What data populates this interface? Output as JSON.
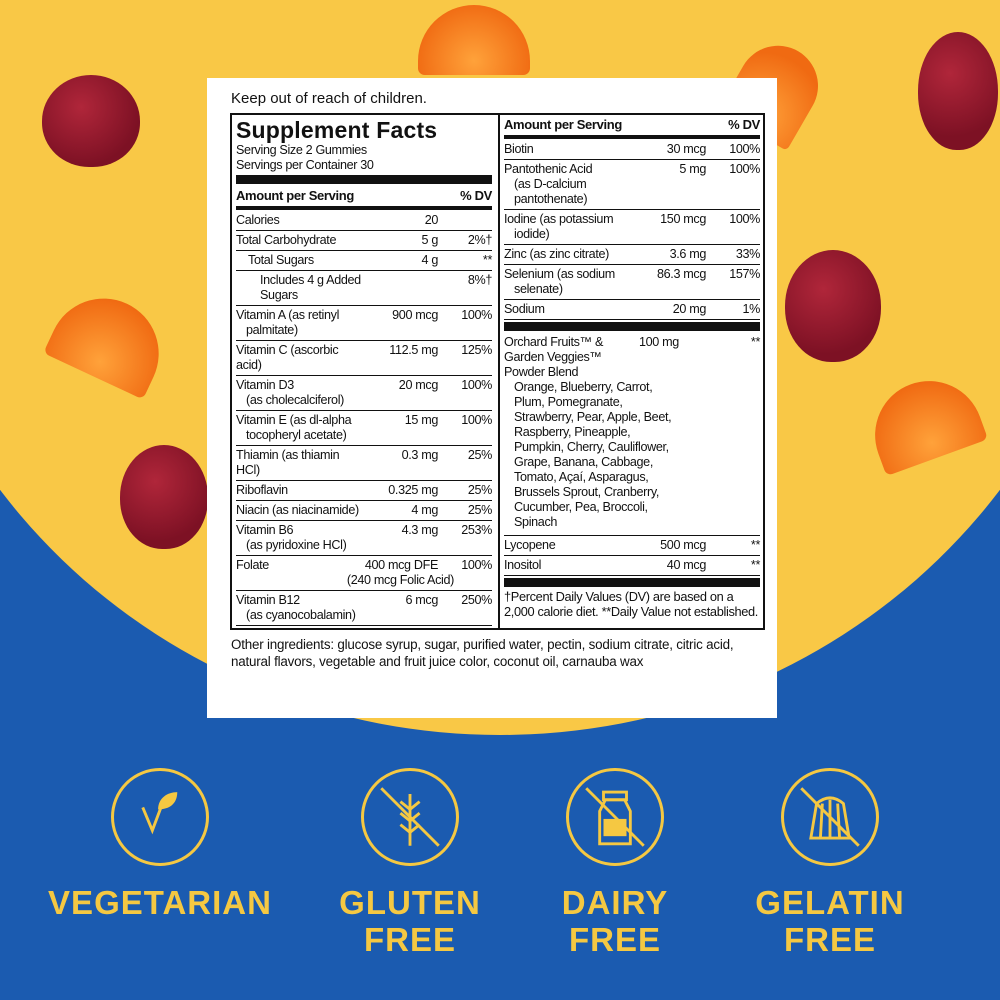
{
  "warning": "Keep out of reach of children.",
  "title": "Supplement Facts",
  "serving_size": "Serving Size 2 Gummies",
  "servings_per_container": "Servings per Container 30",
  "header": {
    "amount": "Amount per Serving",
    "dv": "% DV"
  },
  "left_rows": [
    {
      "name": "Calories",
      "amount": "20",
      "dv": ""
    },
    {
      "name": "Total Carbohydrate",
      "amount": "5 g",
      "dv": "2%†"
    },
    {
      "name": "Total Sugars",
      "amount": "4 g",
      "dv": "**",
      "indent": 1
    },
    {
      "name": "Includes 4 g Added Sugars",
      "amount": "",
      "dv": "8%†",
      "indent": 2
    },
    {
      "name": "Vitamin A (as retinyl",
      "sub": "palmitate)",
      "amount": "900 mcg",
      "dv": "100%"
    },
    {
      "name": "Vitamin C (ascorbic acid)",
      "amount": "112.5 mg",
      "dv": "125%"
    },
    {
      "name": "Vitamin D3",
      "sub": "(as cholecalciferol)",
      "amount": "20 mcg",
      "dv": "100%"
    },
    {
      "name": "Vitamin E (as dl-alpha",
      "sub": "tocopheryl acetate)",
      "amount": "15 mg",
      "dv": "100%"
    },
    {
      "name": "Thiamin (as thiamin HCl)",
      "amount": "0.3 mg",
      "dv": "25%"
    },
    {
      "name": "Riboflavin",
      "amount": "0.325 mg",
      "dv": "25%"
    },
    {
      "name": "Niacin (as niacinamide)",
      "amount": "4 mg",
      "dv": "25%"
    },
    {
      "name": "Vitamin B6",
      "sub": "(as pyridoxine HCl)",
      "amount": "4.3 mg",
      "dv": "253%"
    },
    {
      "name": "Folate",
      "amount": "400 mcg DFE",
      "dv": "100%",
      "note": "(240 mcg Folic Acid)"
    },
    {
      "name": "Vitamin B12",
      "sub": "(as cyanocobalamin)",
      "amount": "6 mcg",
      "dv": "250%"
    }
  ],
  "right_rows": [
    {
      "name": "Biotin",
      "amount": "30 mcg",
      "dv": "100%"
    },
    {
      "name": "Pantothenic Acid",
      "sub": "(as D-calcium pantothenate)",
      "amount": "5 mg",
      "dv": "100%"
    },
    {
      "name": "Iodine (as potassium",
      "sub": "iodide)",
      "amount": "150 mcg",
      "dv": "100%"
    },
    {
      "name": "Zinc (as zinc citrate)",
      "amount": "3.6 mg",
      "dv": "33%"
    },
    {
      "name": "Selenium (as sodium",
      "sub": "selenate)",
      "amount": "86.3 mcg",
      "dv": "157%"
    },
    {
      "name": "Sodium",
      "amount": "20 mg",
      "dv": "1%"
    }
  ],
  "blend": {
    "name": "Orchard Fruits™ & Garden Veggies™ Powder Blend",
    "amount": "100 mg",
    "dv": "**",
    "ingredients": "Orange, Blueberry, Carrot, Plum, Pomegranate, Strawberry, Pear, Apple, Beet, Raspberry, Pineapple, Pumpkin, Cherry, Cauliflower, Grape, Banana, Cabbage, Tomato, Açaí, Asparagus, Brussels Sprout, Cranberry, Cucumber, Pea, Broccoli, Spinach"
  },
  "right_rows2": [
    {
      "name": "Lycopene",
      "amount": "500 mcg",
      "dv": "**"
    },
    {
      "name": "Inositol",
      "amount": "40 mcg",
      "dv": "**"
    }
  ],
  "footnote": "†Percent Daily Values (DV) are based on a 2,000 calorie diet. **Daily Value not established.",
  "other_ingredients": "Other ingredients: glucose syrup, sugar, purified water, pectin, sodium citrate, citric acid, natural flavors, vegetable and fruit juice color, coconut oil, carnauba wax",
  "badges": [
    {
      "label": "VEGETARIAN",
      "icon": "leaf-icon"
    },
    {
      "label": "GLUTEN FREE",
      "icon": "no-wheat-icon"
    },
    {
      "label": "DAIRY FREE",
      "icon": "no-milk-bottle-icon"
    },
    {
      "label": "GELATIN FREE",
      "icon": "no-gelatin-icon"
    }
  ],
  "colors": {
    "yellow": "#f9c846",
    "blue": "#1b5bb0",
    "badge": "#f5c842"
  }
}
